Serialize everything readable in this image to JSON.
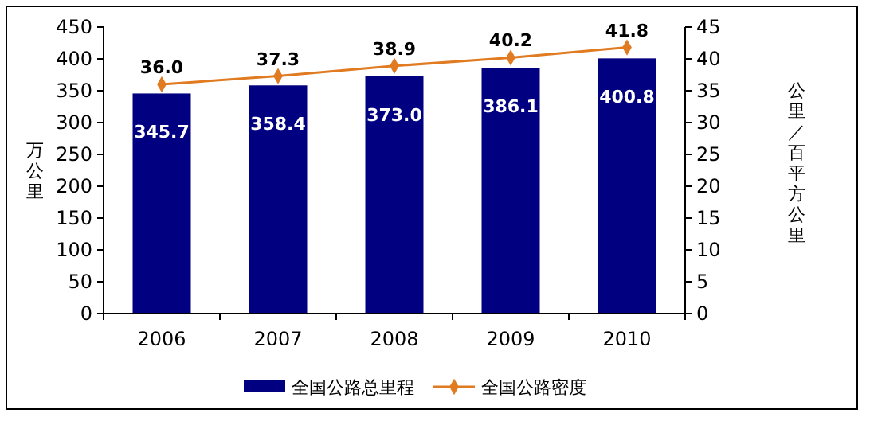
{
  "chart_data": {
    "type": "bar",
    "categories": [
      "2006",
      "2007",
      "2008",
      "2009",
      "2010"
    ],
    "series": [
      {
        "name": "全国公路总里程",
        "color": "#000080",
        "values": [
          345.7,
          358.4,
          373.0,
          386.1,
          400.8
        ],
        "value_labels": [
          "345.7",
          "358.4",
          "373.0",
          "386.1",
          "400.8"
        ]
      },
      {
        "name": "全国公路密度",
        "type": "line",
        "axis": "y2",
        "color": "#e07b22",
        "values": [
          36.0,
          37.3,
          38.9,
          40.2,
          41.8
        ],
        "value_labels": [
          "36.0",
          "37.3",
          "38.9",
          "40.2",
          "41.8"
        ]
      }
    ],
    "ylabel": "万公里",
    "y2label": "公里／百平方公里",
    "ylim": [
      0,
      450
    ],
    "yticks": [
      0,
      50,
      100,
      150,
      200,
      250,
      300,
      350,
      400,
      450
    ],
    "y2lim": [
      0,
      45
    ],
    "y2ticks": [
      0,
      5,
      10,
      15,
      20,
      25,
      30,
      35,
      40,
      45
    ],
    "marker": "diamond",
    "legend": "bottom",
    "grid": false
  }
}
